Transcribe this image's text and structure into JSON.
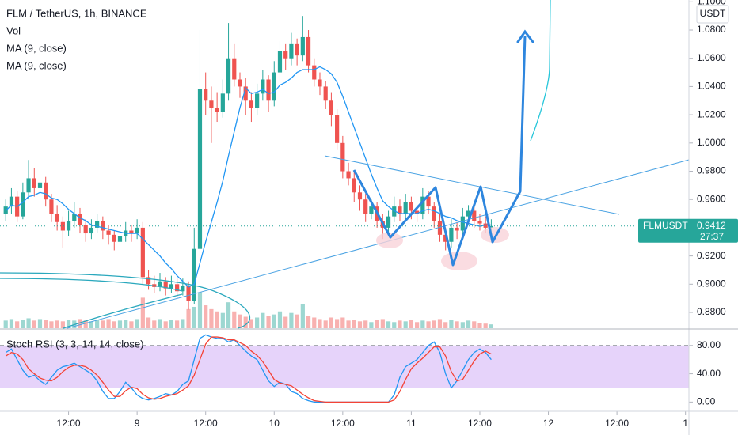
{
  "chart_data": {
    "type": "candlestick",
    "title": "FLM / TetherUS, 1h, BINANCE",
    "quote": "USDT",
    "symbol": "FLMUSDT",
    "last_price": 0.9412,
    "countdown": "27:37",
    "up_color": "#26a69a",
    "down_color": "#ef5350",
    "x": [
      1,
      2,
      3,
      4,
      5,
      6,
      7,
      8,
      9,
      10,
      11,
      12,
      13,
      14,
      15,
      16,
      17,
      18,
      19,
      20,
      21,
      22,
      23,
      24,
      25,
      26,
      27,
      28,
      29,
      30,
      31,
      32,
      33,
      34,
      35,
      36,
      37,
      38,
      39,
      40,
      41,
      42,
      43,
      44,
      45,
      46,
      47,
      48,
      49,
      50,
      51,
      52,
      53,
      54,
      55,
      56,
      57,
      58,
      59,
      60,
      61,
      62,
      63,
      64,
      65,
      66,
      67,
      68,
      69,
      70,
      71,
      72,
      73,
      74,
      75,
      76,
      77,
      78,
      79,
      80,
      81,
      82,
      83,
      84,
      85,
      86
    ],
    "xlim": [
      0,
      120.6
    ],
    "xticks": [
      {
        "value": 12,
        "label": "12:00"
      },
      {
        "value": 24,
        "label": "9"
      },
      {
        "value": 36,
        "label": "12:00"
      },
      {
        "value": 48,
        "label": "10"
      },
      {
        "value": 60,
        "label": "12:00"
      },
      {
        "value": 72,
        "label": "11"
      },
      {
        "value": 84,
        "label": "12:00"
      },
      {
        "value": 96,
        "label": "12"
      },
      {
        "value": 108,
        "label": "12:00"
      },
      {
        "value": 120,
        "label": "1"
      }
    ],
    "ylim": [
      0.8688,
      1.1013
    ],
    "yticks": [
      {
        "value": 1.1,
        "label": "1.1000"
      },
      {
        "value": 1.08,
        "label": "1.0800"
      },
      {
        "value": 1.06,
        "label": "1.0600"
      },
      {
        "value": 1.04,
        "label": "1.0400"
      },
      {
        "value": 1.02,
        "label": "1.0200"
      },
      {
        "value": 1.0,
        "label": "1.0000"
      },
      {
        "value": 0.98,
        "label": "0.9800"
      },
      {
        "value": 0.96,
        "label": "0.9600"
      },
      {
        "value": 0.94,
        "label": "0.9400"
      },
      {
        "value": 0.92,
        "label": "0.9200"
      },
      {
        "value": 0.9,
        "label": "0.9000"
      },
      {
        "value": 0.88,
        "label": "0.8800"
      }
    ],
    "ohlc": [
      [
        0.95,
        0.96,
        0.945,
        0.955
      ],
      [
        0.955,
        0.968,
        0.95,
        0.962
      ],
      [
        0.962,
        0.966,
        0.944,
        0.948
      ],
      [
        0.948,
        0.972,
        0.946,
        0.965
      ],
      [
        0.965,
        0.988,
        0.96,
        0.975
      ],
      [
        0.975,
        0.982,
        0.962,
        0.968
      ],
      [
        0.968,
        0.99,
        0.964,
        0.972
      ],
      [
        0.972,
        0.976,
        0.955,
        0.96
      ],
      [
        0.96,
        0.964,
        0.944,
        0.95
      ],
      [
        0.95,
        0.956,
        0.938,
        0.944
      ],
      [
        0.944,
        0.948,
        0.926,
        0.938
      ],
      [
        0.938,
        0.952,
        0.934,
        0.945
      ],
      [
        0.945,
        0.958,
        0.94,
        0.95
      ],
      [
        0.95,
        0.954,
        0.936,
        0.942
      ],
      [
        0.942,
        0.946,
        0.93,
        0.936
      ],
      [
        0.936,
        0.946,
        0.932,
        0.94
      ],
      [
        0.94,
        0.95,
        0.936,
        0.945
      ],
      [
        0.945,
        0.948,
        0.932,
        0.938
      ],
      [
        0.938,
        0.942,
        0.928,
        0.935
      ],
      [
        0.935,
        0.938,
        0.924,
        0.93
      ],
      [
        0.93,
        0.94,
        0.926,
        0.934
      ],
      [
        0.934,
        0.944,
        0.93,
        0.938
      ],
      [
        0.938,
        0.942,
        0.93,
        0.936
      ],
      [
        0.936,
        0.946,
        0.932,
        0.94
      ],
      [
        0.94,
        0.944,
        0.9,
        0.905
      ],
      [
        0.905,
        0.91,
        0.896,
        0.9
      ],
      [
        0.9,
        0.906,
        0.894,
        0.898
      ],
      [
        0.898,
        0.908,
        0.895,
        0.902
      ],
      [
        0.902,
        0.905,
        0.892,
        0.897
      ],
      [
        0.897,
        0.906,
        0.894,
        0.9
      ],
      [
        0.9,
        0.904,
        0.89,
        0.895
      ],
      [
        0.895,
        0.904,
        0.892,
        0.899
      ],
      [
        0.899,
        0.902,
        0.882,
        0.888
      ],
      [
        0.888,
        0.94,
        0.886,
        0.925
      ],
      [
        0.925,
        1.08,
        0.92,
        1.038
      ],
      [
        1.038,
        1.05,
        1.02,
        1.03
      ],
      [
        1.03,
        1.04,
        1.0,
        1.025
      ],
      [
        1.025,
        1.036,
        1.015,
        1.022
      ],
      [
        1.022,
        1.045,
        1.018,
        1.035
      ],
      [
        1.035,
        1.085,
        1.03,
        1.06
      ],
      [
        1.06,
        1.07,
        1.04,
        1.045
      ],
      [
        1.045,
        1.05,
        1.032,
        1.04
      ],
      [
        1.04,
        1.046,
        1.02,
        1.03
      ],
      [
        1.03,
        1.036,
        1.015,
        1.025
      ],
      [
        1.025,
        1.042,
        1.02,
        1.035
      ],
      [
        1.035,
        1.052,
        1.03,
        1.045
      ],
      [
        1.045,
        1.048,
        1.022,
        1.03
      ],
      [
        1.03,
        1.058,
        1.026,
        1.05
      ],
      [
        1.05,
        1.072,
        1.044,
        1.065
      ],
      [
        1.065,
        1.07,
        1.052,
        1.06
      ],
      [
        1.06,
        1.078,
        1.055,
        1.07
      ],
      [
        1.07,
        1.074,
        1.055,
        1.062
      ],
      [
        1.062,
        1.09,
        1.058,
        1.075
      ],
      [
        1.075,
        1.08,
        1.05,
        1.055
      ],
      [
        1.055,
        1.06,
        1.04,
        1.045
      ],
      [
        1.045,
        1.05,
        1.034,
        1.04
      ],
      [
        1.04,
        1.044,
        1.024,
        1.03
      ],
      [
        1.03,
        1.036,
        1.012,
        1.02
      ],
      [
        1.02,
        1.024,
        0.995,
        1.0
      ],
      [
        1.0,
        1.005,
        0.975,
        0.98
      ],
      [
        0.98,
        0.986,
        0.97,
        0.975
      ],
      [
        0.975,
        0.98,
        0.958,
        0.965
      ],
      [
        0.965,
        0.97,
        0.952,
        0.96
      ],
      [
        0.96,
        0.964,
        0.944,
        0.95
      ],
      [
        0.95,
        0.96,
        0.946,
        0.955
      ],
      [
        0.955,
        0.958,
        0.94,
        0.945
      ],
      [
        0.945,
        0.95,
        0.932,
        0.94
      ],
      [
        0.94,
        0.952,
        0.936,
        0.948
      ],
      [
        0.948,
        0.962,
        0.944,
        0.955
      ],
      [
        0.955,
        0.96,
        0.945,
        0.95
      ],
      [
        0.95,
        0.964,
        0.946,
        0.958
      ],
      [
        0.958,
        0.962,
        0.946,
        0.952
      ],
      [
        0.952,
        0.956,
        0.944,
        0.95
      ],
      [
        0.95,
        0.968,
        0.946,
        0.962
      ],
      [
        0.962,
        0.966,
        0.95,
        0.955
      ],
      [
        0.955,
        0.958,
        0.94,
        0.945
      ],
      [
        0.945,
        0.95,
        0.93,
        0.935
      ],
      [
        0.935,
        0.94,
        0.924,
        0.93
      ],
      [
        0.93,
        0.946,
        0.926,
        0.94
      ],
      [
        0.94,
        0.944,
        0.932,
        0.938
      ],
      [
        0.938,
        0.954,
        0.934,
        0.948
      ],
      [
        0.948,
        0.956,
        0.944,
        0.952
      ],
      [
        0.952,
        0.956,
        0.94,
        0.945
      ],
      [
        0.945,
        0.95,
        0.938,
        0.943
      ],
      [
        0.943,
        0.948,
        0.936,
        0.94
      ],
      [
        0.94,
        0.946,
        0.936,
        0.9412
      ]
    ],
    "volume": {
      "name": "Vol",
      "vlim": [
        0,
        430
      ],
      "values": [
        10,
        12,
        9,
        11,
        13,
        10,
        12,
        11,
        9,
        10,
        9,
        11,
        10,
        12,
        10,
        9,
        11,
        10,
        12,
        9,
        10,
        11,
        9,
        12,
        40,
        14,
        10,
        12,
        9,
        11,
        10,
        12,
        25,
        28,
        47,
        30,
        25,
        22,
        20,
        34,
        22,
        18,
        15,
        12,
        14,
        20,
        16,
        18,
        22,
        15,
        20,
        18,
        32,
        16,
        14,
        12,
        10,
        14,
        12,
        14,
        10,
        11,
        9,
        10,
        8,
        11,
        12,
        9,
        8,
        10,
        9,
        11,
        8,
        10,
        9,
        10,
        12,
        8,
        11,
        9,
        8,
        10,
        9,
        7,
        6,
        5
      ]
    },
    "ma": {
      "name": "MA (9, close)",
      "color": "#2196f3",
      "values": [
        0.952,
        0.956,
        0.955,
        0.958,
        0.962,
        0.963,
        0.965,
        0.964,
        0.961,
        0.96,
        0.957,
        0.953,
        0.95,
        0.947,
        0.945,
        0.942,
        0.941,
        0.94,
        0.939,
        0.938,
        0.937,
        0.936,
        0.936,
        0.936,
        0.932,
        0.928,
        0.924,
        0.92,
        0.915,
        0.911,
        0.906,
        0.902,
        0.898,
        0.9,
        0.915,
        0.93,
        0.944,
        0.958,
        0.973,
        0.991,
        1.008,
        1.025,
        1.039,
        1.035,
        1.036,
        1.038,
        1.035,
        1.036,
        1.041,
        1.043,
        1.046,
        1.05,
        1.052,
        1.052,
        1.052,
        1.054,
        1.052,
        1.049,
        1.043,
        1.033,
        1.022,
        1.011,
        1.0,
        0.989,
        0.978,
        0.968,
        0.959,
        0.955,
        0.952,
        0.95,
        0.95,
        0.95,
        0.95,
        0.952,
        0.953,
        0.952,
        0.95,
        0.948,
        0.947,
        0.945,
        0.944,
        0.943,
        0.942,
        0.941,
        0.942,
        0.942
      ]
    },
    "ma2_name": "MA (9, close)",
    "stoch": {
      "type": "line",
      "title": "Stoch RSI (3, 3, 14, 14, close)",
      "ylim": [
        -13,
        101
      ],
      "yticks": [
        {
          "value": 80,
          "label": "80.00"
        },
        {
          "value": 40,
          "label": "40.00"
        },
        {
          "value": 0,
          "label": "0.00"
        }
      ],
      "band": [
        20,
        80
      ],
      "band_color": "#e6d3fa",
      "series": [
        {
          "color": "#2196f3",
          "values": [
            70,
            75,
            60,
            45,
            35,
            38,
            30,
            25,
            35,
            45,
            50,
            52,
            55,
            50,
            45,
            40,
            30,
            15,
            5,
            5,
            15,
            28,
            20,
            10,
            5,
            3,
            5,
            8,
            12,
            10,
            15,
            25,
            30,
            60,
            90,
            95,
            92,
            90,
            90,
            85,
            88,
            80,
            72,
            65,
            60,
            45,
            30,
            22,
            28,
            25,
            15,
            12,
            5,
            2,
            0,
            0,
            0,
            0,
            0,
            0,
            0,
            0,
            0,
            0,
            0,
            0,
            0,
            0,
            10,
            35,
            50,
            55,
            60,
            70,
            80,
            85,
            70,
            40,
            20,
            30,
            45,
            60,
            70,
            75,
            70,
            60
          ]
        },
        {
          "color": "#f44336",
          "values": [
            65,
            70,
            68,
            60,
            47,
            40,
            34,
            31,
            30,
            35,
            43,
            49,
            52,
            52,
            50,
            45,
            38,
            28,
            17,
            8,
            8,
            16,
            21,
            19,
            11,
            6,
            4,
            5,
            8,
            10,
            12,
            17,
            23,
            38,
            60,
            82,
            92,
            92,
            91,
            88,
            88,
            84,
            80,
            72,
            66,
            57,
            45,
            32,
            27,
            25,
            23,
            17,
            11,
            6,
            2,
            1,
            0,
            0,
            0,
            0,
            0,
            0,
            0,
            0,
            0,
            0,
            0,
            0,
            3,
            15,
            32,
            47,
            55,
            62,
            70,
            78,
            78,
            65,
            43,
            30,
            32,
            45,
            58,
            68,
            72,
            68
          ]
        }
      ]
    }
  }
}
